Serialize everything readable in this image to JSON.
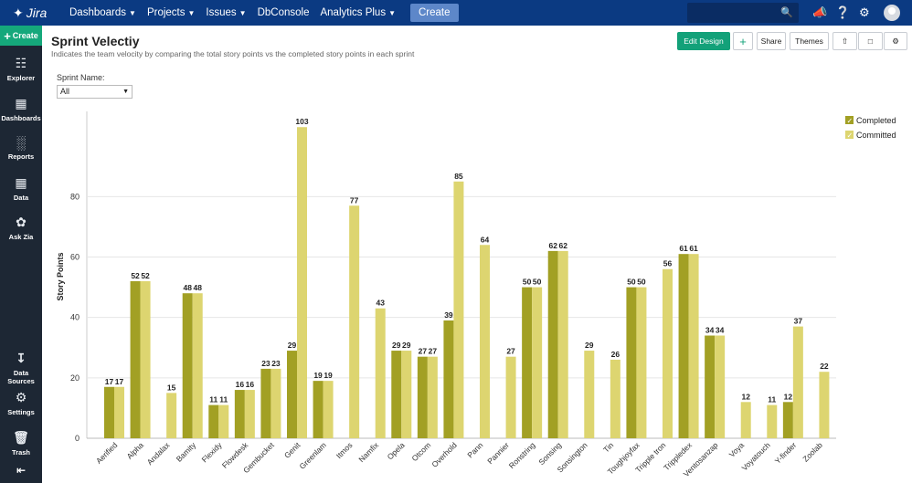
{
  "topbar": {
    "app_name": "Jira",
    "nav": [
      {
        "label": "Dashboards",
        "has_menu": true
      },
      {
        "label": "Projects",
        "has_menu": true
      },
      {
        "label": "Issues",
        "has_menu": true
      },
      {
        "label": "DbConsole",
        "has_menu": false
      },
      {
        "label": "Analytics Plus",
        "has_menu": true
      }
    ],
    "create_label": "Create",
    "search_placeholder": ""
  },
  "sidebar": {
    "create_label": "Create",
    "items": [
      {
        "label": "Explorer"
      },
      {
        "label": "Dashboards"
      },
      {
        "label": "Reports"
      },
      {
        "label": "Data"
      },
      {
        "label": "Ask Zia"
      },
      {
        "label": "Data Sources"
      },
      {
        "label": "Settings"
      },
      {
        "label": "Trash"
      }
    ]
  },
  "header": {
    "title": "Sprint Velectiy",
    "subtitle": "Indicates the team velocity by comparing the total story points vs the completed story points in each sprint",
    "edit_design_label": "Edit Design",
    "add_label": "+",
    "share_label": "Share",
    "themes_label": "Themes"
  },
  "filter": {
    "label": "Sprint Name:",
    "value": "All"
  },
  "chart_data": {
    "type": "bar",
    "ylabel": "Story Points",
    "xlabel": "",
    "ylim": [
      0,
      107
    ],
    "yticks": [
      0,
      20,
      40,
      60,
      80
    ],
    "categories": [
      "Aerified",
      "Alpha",
      "Andalax",
      "Bamity",
      "Flexidy",
      "Flowdesk",
      "Gembucket",
      "Genit",
      "Greenlam",
      "Itmos",
      "Namfix",
      "Opela",
      "Otcom",
      "Overhold",
      "Pann",
      "Pannier",
      "Ronstring",
      "Sonsing",
      "Sonsington",
      "Tin",
      "Toughjoyfax",
      "Tripple tron",
      "Trippledex",
      "Ventosanzap",
      "Voya",
      "Voyatouch",
      "Y-finder",
      "Zoolab"
    ],
    "series": [
      {
        "name": "Completed",
        "color": "#a2a024",
        "values": [
          17,
          52,
          null,
          48,
          11,
          16,
          23,
          29,
          19,
          null,
          null,
          29,
          27,
          39,
          null,
          null,
          50,
          62,
          null,
          null,
          50,
          null,
          61,
          34,
          null,
          null,
          12,
          null
        ]
      },
      {
        "name": "Committed",
        "color": "#ddd570",
        "values": [
          17,
          52,
          15,
          48,
          11,
          16,
          23,
          103,
          19,
          77,
          43,
          29,
          27,
          85,
          64,
          27,
          50,
          62,
          29,
          26,
          50,
          56,
          61,
          34,
          12,
          11,
          37,
          22
        ]
      }
    ],
    "legend_position": "top-right",
    "grid": true
  }
}
